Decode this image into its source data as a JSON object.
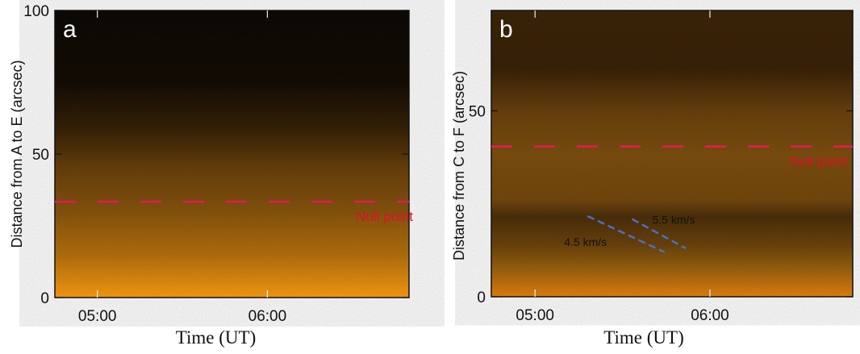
{
  "chart_data": [
    {
      "type": "heatmap",
      "panel_label": "a",
      "xlabel": "Time  (UT)",
      "ylabel": "Distance from  A  to  E (arcsec)",
      "x_ticks": [
        {
          "label": "05:00",
          "minutes": 0
        },
        {
          "label": "06:00",
          "minutes": 60
        }
      ],
      "xlim_minutes_from_0500": [
        -15,
        110
      ],
      "y_ticks": [
        0,
        50,
        100
      ],
      "ylim": [
        0,
        100
      ],
      "null_point": {
        "label": "Null point",
        "value": 33.4
      },
      "colors": {
        "bright": "#ffa010",
        "dark": "#120b04",
        "null_line": "#e8185a"
      }
    },
    {
      "type": "heatmap",
      "panel_label": "b",
      "xlabel": "Time  (UT)",
      "ylabel": "Distance from  C  to  F (arcsec)",
      "x_ticks": [
        {
          "label": "05:00",
          "minutes": 0
        },
        {
          "label": "06:00",
          "minutes": 60
        }
      ],
      "xlim_minutes_from_0500": [
        -15,
        109
      ],
      "y_ticks": [
        0,
        50
      ],
      "ylim": [
        0,
        77
      ],
      "null_point": {
        "label": "Null point",
        "value": 40.4
      },
      "speed_lines": [
        {
          "label": "4.5 km/s",
          "start": [
            18,
            21.7
          ],
          "end": [
            44.4,
            12
          ]
        },
        {
          "label": "5.5 km/s",
          "start": [
            33.3,
            20.9
          ],
          "end": [
            51.7,
            13
          ]
        }
      ],
      "colors": {
        "bright": "#e8860e",
        "dark": "#3a2207",
        "null_line": "#e8185a",
        "speed_line": "#4a6fc8"
      }
    }
  ]
}
